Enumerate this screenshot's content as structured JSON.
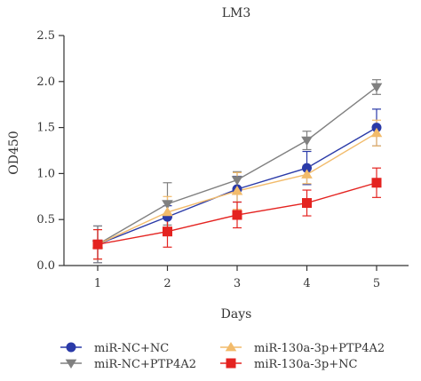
{
  "chart_data": {
    "type": "line",
    "title": "LM3",
    "xlabel": "Days",
    "ylabel": "OD450",
    "x": [
      1,
      2,
      3,
      4,
      5
    ],
    "xticks": [
      "1",
      "2",
      "3",
      "4",
      "5"
    ],
    "yticks": [
      "0.0",
      "0.5",
      "1.0",
      "1.5",
      "2.0",
      "2.5"
    ],
    "ylim": [
      0,
      2.5
    ],
    "grid": false,
    "legend_position": "bottom",
    "series": [
      {
        "name": "miR-NC+NC",
        "marker": "circle",
        "color": "#2a3aa8",
        "values": [
          0.23,
          0.53,
          0.83,
          1.06,
          1.5
        ],
        "errors": [
          0.2,
          0.12,
          0.14,
          0.18,
          0.2
        ]
      },
      {
        "name": "miR-NC+PTP4A2",
        "marker": "triangle-down",
        "color": "#808080",
        "values": [
          0.23,
          0.67,
          0.93,
          1.36,
          1.94
        ],
        "errors": [
          0.2,
          0.23,
          0.09,
          0.1,
          0.08
        ]
      },
      {
        "name": "miR-130a-3p+PTP4A2",
        "marker": "triangle-up",
        "color": "#f2bb6b",
        "values": [
          0.23,
          0.58,
          0.81,
          0.99,
          1.44
        ],
        "errors": [
          0.16,
          0.17,
          0.2,
          0.1,
          0.14
        ]
      },
      {
        "name": "miR-130a-3p+NC",
        "marker": "square",
        "color": "#e42320",
        "values": [
          0.23,
          0.37,
          0.55,
          0.68,
          0.9
        ],
        "errors": [
          0.16,
          0.17,
          0.14,
          0.14,
          0.16
        ]
      }
    ]
  }
}
